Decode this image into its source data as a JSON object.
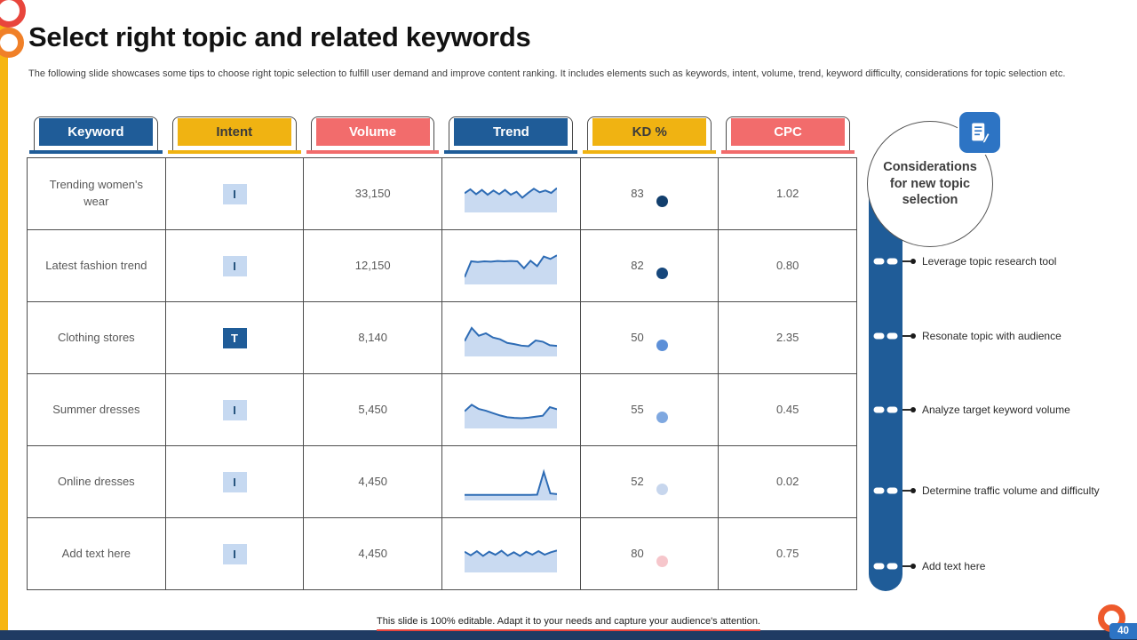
{
  "slide": {
    "title": "Select right topic and related keywords",
    "subtitle": "The following slide showcases some tips to choose right topic selection to fulfill user demand and improve content ranking. It includes elements such as keywords, intent, volume, trend, keyword difficulty,  considerations for topic selection etc.",
    "footer": "This slide is 100% editable.  Adapt it to your needs and capture your audience's attention.",
    "page_number": "40"
  },
  "colors": {
    "accent_blue": "#1f5c98",
    "accent_yellow": "#f0b312",
    "accent_red": "#f26c6c",
    "spark_line": "#2e6cb5",
    "spark_fill": "#c9daf1"
  },
  "table": {
    "headers": [
      {
        "label": "Keyword",
        "color": "#1f5c98",
        "text_color": "#ffffff"
      },
      {
        "label": "Intent",
        "color": "#f0b312",
        "text_color": "#3b3b3b"
      },
      {
        "label": "Volume",
        "color": "#f26c6c",
        "text_color": "#ffffff"
      },
      {
        "label": "Trend",
        "color": "#1f5c98",
        "text_color": "#ffffff"
      },
      {
        "label": "KD %",
        "color": "#f0b312",
        "text_color": "#3b3b3b"
      },
      {
        "label": "CPC",
        "color": "#f26c6c",
        "text_color": "#ffffff"
      }
    ],
    "rows": [
      {
        "keyword": "Trending women's wear",
        "intent": "I",
        "intent_variant": "light",
        "volume": "33,150",
        "trend_points": [
          55,
          68,
          52,
          66,
          50,
          64,
          52,
          66,
          50,
          60,
          40,
          56,
          70,
          58,
          64,
          56,
          72
        ],
        "kd": "83",
        "kd_dot_color": "#123f6d",
        "cpc": "1.02"
      },
      {
        "keyword": "Latest fashion trend",
        "intent": "I",
        "intent_variant": "light",
        "volume": "12,150",
        "trend_points": [
          15,
          68,
          66,
          68,
          67,
          69,
          68,
          69,
          68,
          45,
          70,
          52,
          84,
          76,
          88
        ],
        "kd": "82",
        "kd_dot_color": "#16477c",
        "cpc": "0.80"
      },
      {
        "keyword": "Clothing stores",
        "intent": "T",
        "intent_variant": "dark",
        "volume": "8,140",
        "trend_points": [
          42,
          86,
          60,
          68,
          54,
          48,
          36,
          32,
          27,
          25,
          44,
          40,
          28,
          26
        ],
        "kd": "50",
        "kd_dot_color": "#5d90d8",
        "cpc": "2.35"
      },
      {
        "keyword": "Summer dresses",
        "intent": "I",
        "intent_variant": "light",
        "volume": "5,450",
        "trend_points": [
          48,
          70,
          56,
          50,
          42,
          34,
          28,
          26,
          25,
          27,
          30,
          33,
          62,
          55
        ],
        "kd": "55",
        "kd_dot_color": "#7fa8e0",
        "cpc": "0.45"
      },
      {
        "keyword": "Online dresses",
        "intent": "I",
        "intent_variant": "light",
        "volume": "4,450",
        "trend_points": [
          9,
          9,
          9,
          9,
          9,
          9,
          9,
          9,
          9,
          9,
          9,
          10,
          86,
          14,
          12
        ],
        "kd": "52",
        "kd_dot_color": "#c7d6ed",
        "cpc": "0.02"
      },
      {
        "keyword": "Add text here",
        "intent": "I",
        "intent_variant": "light",
        "volume": "4,450",
        "trend_points": [
          60,
          48,
          62,
          46,
          60,
          50,
          63,
          47,
          58,
          46,
          60,
          50,
          62,
          50,
          58,
          64
        ],
        "kd": "80",
        "kd_dot_color": "#f6c6cb",
        "cpc": "0.75"
      }
    ]
  },
  "considerations": {
    "title": "Considerations for new topic selection",
    "items": [
      "Leverage  topic research tool",
      "Resonate topic with audience",
      "Analyze target keyword volume",
      "Determine traffic volume  and difficulty",
      "Add text here"
    ]
  }
}
